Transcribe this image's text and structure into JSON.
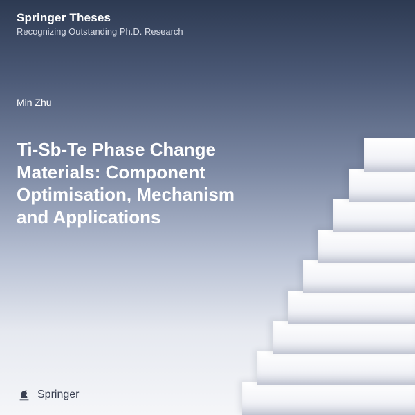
{
  "series": {
    "title": "Springer Theses",
    "subtitle": "Recognizing Outstanding Ph.D. Research"
  },
  "author": "Min Zhu",
  "title": "Ti-Sb-Te Phase Change Materials: Component Optimisation, Mechanism and Applications",
  "publisher": "Springer",
  "colors": {
    "gradient_top": "#2d3a52",
    "gradient_bottom": "#f5f6f9",
    "text_light": "#ffffff",
    "text_dark": "#3a4052",
    "step_light": "#ffffff",
    "step_shadow": "#d0d5e2"
  },
  "stairs": {
    "count": 9,
    "base_bottom": 0,
    "step_height": 48,
    "riser_height": 44,
    "base_width": 250,
    "width_decrement": 22
  }
}
